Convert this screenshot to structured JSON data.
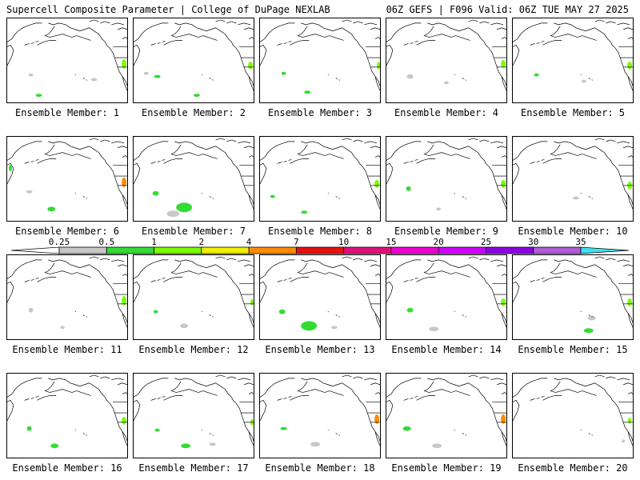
{
  "header": {
    "title": "Supercell Composite Parameter | College of DuPage NEXLAB",
    "run_info": "06Z GEFS | F096 Valid: 06Z TUE MAY 27 2025"
  },
  "panel_label_prefix": "Ensemble Member:",
  "members": [
    {
      "n": 1,
      "label": "Ensemble Member: 1"
    },
    {
      "n": 2,
      "label": "Ensemble Member: 2"
    },
    {
      "n": 3,
      "label": "Ensemble Member: 3"
    },
    {
      "n": 4,
      "label": "Ensemble Member: 4"
    },
    {
      "n": 5,
      "label": "Ensemble Member: 5"
    },
    {
      "n": 6,
      "label": "Ensemble Member: 6"
    },
    {
      "n": 7,
      "label": "Ensemble Member: 7"
    },
    {
      "n": 8,
      "label": "Ensemble Member: 8"
    },
    {
      "n": 9,
      "label": "Ensemble Member: 9"
    },
    {
      "n": 10,
      "label": "Ensemble Member: 10"
    },
    {
      "n": 11,
      "label": "Ensemble Member: 11"
    },
    {
      "n": 12,
      "label": "Ensemble Member: 12"
    },
    {
      "n": 13,
      "label": "Ensemble Member: 13"
    },
    {
      "n": 14,
      "label": "Ensemble Member: 14"
    },
    {
      "n": 15,
      "label": "Ensemble Member: 15"
    },
    {
      "n": 16,
      "label": "Ensemble Member: 16"
    },
    {
      "n": 17,
      "label": "Ensemble Member: 17"
    },
    {
      "n": 18,
      "label": "Ensemble Member: 18"
    },
    {
      "n": 19,
      "label": "Ensemble Member: 19"
    },
    {
      "n": 20,
      "label": "Ensemble Member: 20"
    }
  ],
  "colorbar": {
    "ticks": [
      "0.25",
      "0.5",
      "1",
      "2",
      "4",
      "7",
      "10",
      "15",
      "20",
      "25",
      "30",
      "35"
    ],
    "colors": [
      "#c8c8c8",
      "#32dc32",
      "#7cfc00",
      "#f0f000",
      "#ff8c00",
      "#e81010",
      "#e0107a",
      "#f000d2",
      "#d200ff",
      "#8c00e6",
      "#b05cd8",
      "#40e0f0"
    ]
  },
  "map": {
    "land_color": "#ffffff",
    "coast_color": "#000000",
    "low_color": "#c8c8c8",
    "mid_color": "#32dc32",
    "high_color": "#7cfc00",
    "hot_color": "#ff8c00"
  }
}
